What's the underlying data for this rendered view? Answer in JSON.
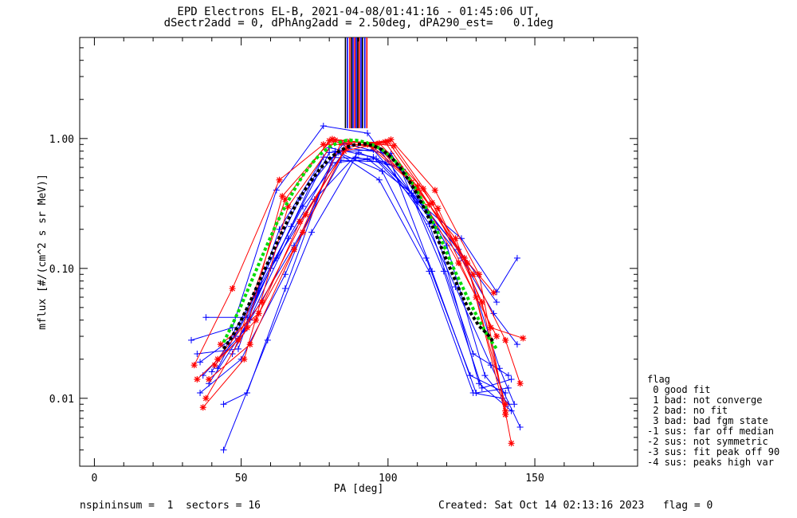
{
  "title_line1": "EPD Electrons EL-B, 2021-04-08/01:41:16 - 01:45:06 UT,",
  "title_line2": "dSectr2add = 0, dPhAng2add = 2.50deg, dPA290_est=   0.1deg",
  "footer_left": "nspininsum =  1  sectors = 16",
  "footer_right": "Created: Sat Oct 14 02:13:16 2023   flag = 0",
  "legend": {
    "title": "flag",
    "items": [
      " 0 good fit",
      " 1 bad: not converge",
      " 2 bad: no fit",
      " 3 bad: bad fgm state",
      "-1 sus: far off median",
      "-2 sus: not symmetric",
      "-3 sus: fit peak off 90",
      "-4 sus: peaks high var"
    ]
  },
  "colors": {
    "blue": "#0000ff",
    "red": "#ff0000",
    "green": "#00dd00",
    "black": "#000000"
  },
  "chart_data": {
    "type": "line",
    "xlabel": "PA [deg]",
    "ylabel": "mflux [#/(cm^2 s sr MeV)]",
    "xlim": [
      -5,
      185
    ],
    "ylim": [
      0.003,
      6
    ],
    "yscale": "log",
    "xticks": [
      0,
      50,
      100,
      150
    ],
    "xtick_labels": [
      "0",
      "50",
      "100",
      "150"
    ],
    "yticks": [
      0.01,
      0.1,
      1.0
    ],
    "ytick_labels": [
      "0.01",
      "0.10",
      "1.00"
    ],
    "series": [
      {
        "color": "blue",
        "marker": "plus",
        "x": [
          38,
          52,
          67,
          80,
          95,
          110,
          125,
          137,
          144
        ],
        "y": [
          0.042,
          0.042,
          0.21,
          0.78,
          0.82,
          0.33,
          0.17,
          0.066,
          0.12
        ]
      },
      {
        "color": "blue",
        "marker": "plus",
        "x": [
          33,
          47,
          62,
          78,
          93,
          108,
          123,
          135,
          145
        ],
        "y": [
          0.028,
          0.035,
          0.4,
          1.25,
          1.1,
          0.38,
          0.072,
          0.018,
          0.006
        ]
      },
      {
        "color": "blue",
        "marker": "plus",
        "x": [
          36,
          50,
          65,
          81,
          96,
          111,
          126,
          138,
          143
        ],
        "y": [
          0.011,
          0.02,
          0.09,
          0.65,
          0.7,
          0.33,
          0.12,
          0.017,
          0.009
        ]
      },
      {
        "color": "blue",
        "marker": "plus",
        "x": [
          44,
          59,
          74,
          89,
          104,
          119,
          132,
          142
        ],
        "y": [
          0.004,
          0.028,
          0.19,
          0.72,
          0.6,
          0.095,
          0.012,
          0.014
        ]
      },
      {
        "color": "blue",
        "marker": "plus",
        "x": [
          40,
          55,
          70,
          85,
          100,
          115,
          130,
          141
        ],
        "y": [
          0.016,
          0.065,
          0.35,
          0.92,
          0.75,
          0.095,
          0.011,
          0.012
        ]
      },
      {
        "color": "blue",
        "marker": "plus",
        "x": [
          44,
          52,
          65,
          82,
          97,
          114,
          129,
          139
        ],
        "y": [
          0.009,
          0.011,
          0.07,
          0.8,
          0.48,
          0.095,
          0.011,
          0.01
        ]
      },
      {
        "color": "blue",
        "marker": "plus",
        "x": [
          37,
          51,
          66,
          83,
          98,
          113,
          128,
          140
        ],
        "y": [
          0.015,
          0.033,
          0.17,
          0.78,
          0.56,
          0.12,
          0.015,
          0.011
        ]
      },
      {
        "color": "blue",
        "marker": "plus",
        "x": [
          35,
          49,
          63,
          80,
          95,
          110,
          125,
          136,
          144
        ],
        "y": [
          0.022,
          0.024,
          0.2,
          0.85,
          0.72,
          0.32,
          0.12,
          0.045,
          0.026
        ]
      },
      {
        "color": "blue",
        "marker": "plus",
        "x": [
          39,
          53,
          68,
          84,
          99,
          114,
          129,
          141
        ],
        "y": [
          0.013,
          0.04,
          0.15,
          0.68,
          0.66,
          0.22,
          0.022,
          0.015
        ]
      },
      {
        "color": "blue",
        "marker": "plus",
        "x": [
          42,
          56,
          71,
          86,
          101,
          116,
          131,
          142
        ],
        "y": [
          0.017,
          0.07,
          0.3,
          0.84,
          0.77,
          0.21,
          0.013,
          0.008
        ]
      },
      {
        "color": "blue",
        "marker": "plus",
        "x": [
          36,
          48,
          62,
          78,
          93,
          108,
          124,
          137
        ],
        "y": [
          0.019,
          0.03,
          0.12,
          0.72,
          0.7,
          0.38,
          0.14,
          0.055
        ]
      },
      {
        "color": "blue",
        "marker": "plus",
        "x": [
          47,
          60,
          75,
          90,
          105,
          120,
          133,
          141
        ],
        "y": [
          0.022,
          0.1,
          0.34,
          0.78,
          0.58,
          0.15,
          0.015,
          0.009
        ]
      },
      {
        "color": "red",
        "marker": "star",
        "x": [
          34,
          47,
          63,
          78,
          93,
          108,
          123,
          135,
          146
        ],
        "y": [
          0.018,
          0.07,
          0.48,
          0.9,
          0.9,
          0.46,
          0.17,
          0.035,
          0.029
        ]
      },
      {
        "color": "red",
        "marker": "star",
        "x": [
          37,
          51,
          66,
          82,
          97,
          112,
          127,
          140
        ],
        "y": [
          0.0085,
          0.02,
          0.3,
          0.97,
          0.92,
          0.41,
          0.11,
          0.0075
        ]
      },
      {
        "color": "red",
        "marker": "star",
        "x": [
          39,
          53,
          68,
          84,
          99,
          114,
          129,
          140,
          145
        ],
        "y": [
          0.014,
          0.026,
          0.14,
          0.93,
          0.94,
          0.31,
          0.09,
          0.028,
          0.013
        ]
      },
      {
        "color": "red",
        "marker": "star",
        "x": [
          41,
          55,
          70,
          86,
          101,
          116,
          131,
          142
        ],
        "y": [
          0.018,
          0.04,
          0.23,
          0.85,
          0.98,
          0.4,
          0.09,
          0.0045
        ]
      },
      {
        "color": "red",
        "marker": "star",
        "x": [
          38,
          52,
          64,
          81,
          96,
          110,
          124,
          137
        ],
        "y": [
          0.01,
          0.035,
          0.36,
          0.99,
          0.9,
          0.4,
          0.11,
          0.03
        ]
      },
      {
        "color": "red",
        "marker": "star",
        "x": [
          42,
          57,
          72,
          87,
          102,
          117,
          132,
          140
        ],
        "y": [
          0.02,
          0.055,
          0.26,
          0.95,
          0.88,
          0.29,
          0.055,
          0.008
        ]
      },
      {
        "color": "red",
        "marker": "star",
        "x": [
          35,
          49,
          65,
          80,
          95,
          110,
          126,
          136
        ],
        "y": [
          0.014,
          0.028,
          0.34,
          0.96,
          0.86,
          0.43,
          0.12,
          0.065
        ]
      },
      {
        "color": "red",
        "marker": "star",
        "x": [
          43,
          56,
          71,
          85,
          100,
          115,
          130,
          140
        ],
        "y": [
          0.026,
          0.045,
          0.19,
          0.8,
          0.95,
          0.32,
          0.06,
          0.009
        ]
      }
    ],
    "fits": [
      {
        "color": "green",
        "style": "dashed",
        "x": [
          44,
          47,
          50,
          53,
          56,
          59,
          62,
          65,
          68,
          71,
          74,
          77,
          80,
          83,
          86,
          89,
          92,
          95,
          98,
          101,
          104,
          107,
          110,
          113,
          116,
          119,
          122,
          125,
          128,
          131,
          134,
          137
        ],
        "y": [
          0.027,
          0.037,
          0.052,
          0.075,
          0.108,
          0.155,
          0.22,
          0.3,
          0.4,
          0.52,
          0.64,
          0.76,
          0.86,
          0.93,
          0.97,
          0.97,
          0.94,
          0.89,
          0.82,
          0.72,
          0.62,
          0.5,
          0.39,
          0.29,
          0.21,
          0.15,
          0.104,
          0.075,
          0.054,
          0.04,
          0.03,
          0.024
        ]
      },
      {
        "color": "black",
        "style": "dashed",
        "x": [
          44,
          47,
          50,
          53,
          56,
          59,
          62,
          65,
          68,
          71,
          74,
          77,
          80,
          83,
          86,
          89,
          92,
          95,
          98,
          101,
          104,
          107,
          110,
          113,
          116,
          119,
          122,
          125,
          128,
          131,
          134,
          136
        ],
        "y": [
          0.024,
          0.03,
          0.04,
          0.055,
          0.078,
          0.11,
          0.155,
          0.215,
          0.29,
          0.38,
          0.48,
          0.59,
          0.7,
          0.79,
          0.86,
          0.9,
          0.91,
          0.88,
          0.82,
          0.72,
          0.6,
          0.48,
          0.37,
          0.27,
          0.19,
          0.13,
          0.09,
          0.063,
          0.046,
          0.036,
          0.031,
          0.027
        ]
      }
    ],
    "peak_lines": [
      {
        "color": "black",
        "x": 85.5
      },
      {
        "color": "blue",
        "x": 86.2
      },
      {
        "color": "red",
        "x": 87.0
      },
      {
        "color": "black",
        "x": 87.6
      },
      {
        "color": "blue",
        "x": 88.1
      },
      {
        "color": "red",
        "x": 88.7
      },
      {
        "color": "blue",
        "x": 89.2
      },
      {
        "color": "black",
        "x": 89.7
      },
      {
        "color": "red",
        "x": 90.2
      },
      {
        "color": "blue",
        "x": 90.8
      },
      {
        "color": "black",
        "x": 91.3
      },
      {
        "color": "blue",
        "x": 92.1
      },
      {
        "color": "red",
        "x": 92.8
      }
    ]
  }
}
